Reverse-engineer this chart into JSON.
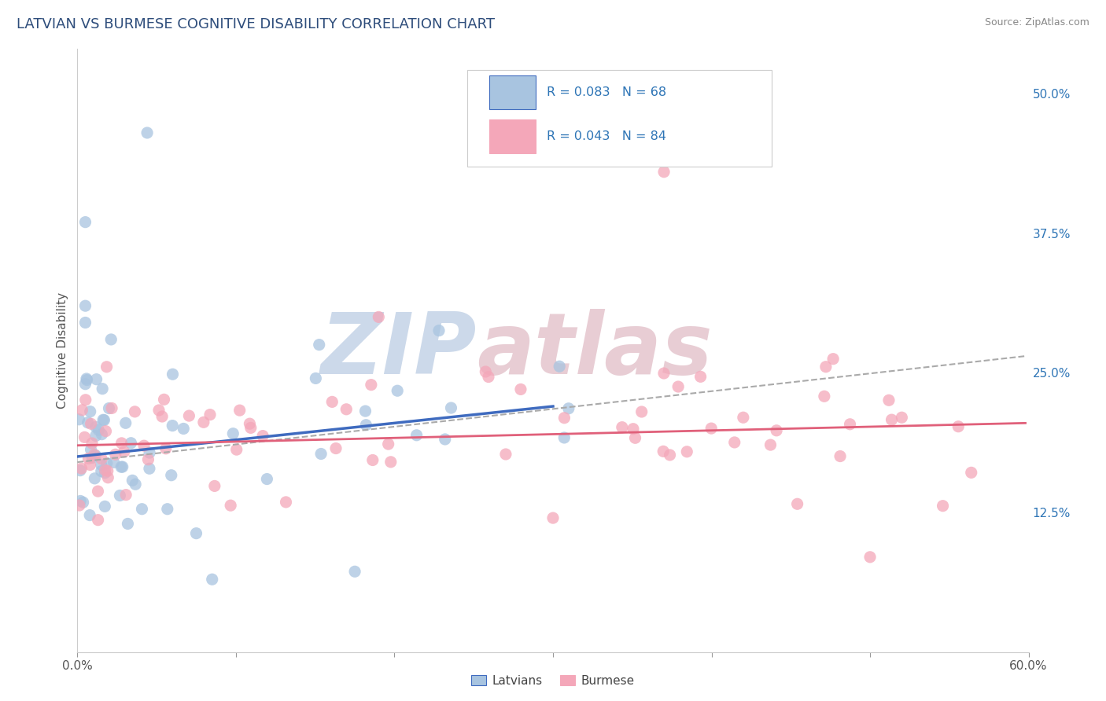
{
  "title": "LATVIAN VS BURMESE COGNITIVE DISABILITY CORRELATION CHART",
  "source": "Source: ZipAtlas.com",
  "ylabel": "Cognitive Disability",
  "ytick_labels": [
    "12.5%",
    "25.0%",
    "37.5%",
    "50.0%"
  ],
  "ytick_values": [
    0.125,
    0.25,
    0.375,
    0.5
  ],
  "xmin": 0.0,
  "xmax": 0.6,
  "ymin": 0.0,
  "ymax": 0.54,
  "latvian_color": "#a8c4e0",
  "latvian_line_color": "#3f6bbf",
  "burmese_color": "#f4a7b9",
  "burmese_line_color": "#e0607a",
  "burmese_dashed_color": "#aaaaaa",
  "latvian_R": 0.083,
  "latvian_N": 68,
  "burmese_R": 0.043,
  "burmese_N": 84,
  "legend_text_color": "#2e75b6",
  "legend_label_color": "#333333",
  "latvians_label": "Latvians",
  "burmese_label": "Burmese",
  "watermark_zip_color": "#ccd9ea",
  "watermark_atlas_color": "#e8cdd4"
}
